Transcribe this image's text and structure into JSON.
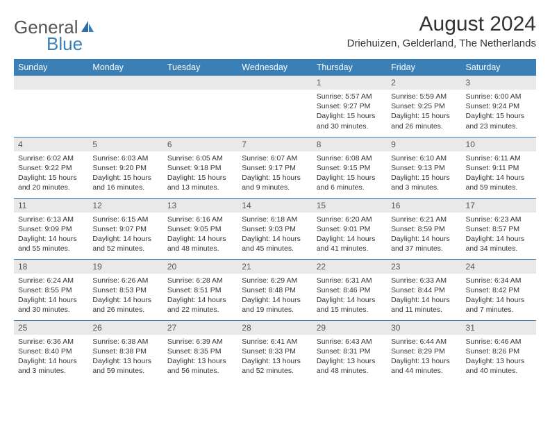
{
  "logo": {
    "text1": "General",
    "text2": "Blue"
  },
  "header": {
    "title": "August 2024",
    "location": "Driehuizen, Gelderland, The Netherlands"
  },
  "colors": {
    "header_bg": "#3a7fb5",
    "header_text": "#ffffff",
    "daynum_bg": "#e9e9e9",
    "row_border": "#3a7fb5",
    "body_text": "#333333",
    "page_bg": "#ffffff"
  },
  "typography": {
    "title_fontsize": 30,
    "location_fontsize": 15,
    "day_header_fontsize": 12.5,
    "daynum_fontsize": 12,
    "cell_fontsize": 10.5,
    "font_family": "Arial"
  },
  "weekdays": [
    "Sunday",
    "Monday",
    "Tuesday",
    "Wednesday",
    "Thursday",
    "Friday",
    "Saturday"
  ],
  "weeks": [
    [
      {
        "n": "",
        "sunrise": "",
        "sunset": "",
        "daylight": ""
      },
      {
        "n": "",
        "sunrise": "",
        "sunset": "",
        "daylight": ""
      },
      {
        "n": "",
        "sunrise": "",
        "sunset": "",
        "daylight": ""
      },
      {
        "n": "",
        "sunrise": "",
        "sunset": "",
        "daylight": ""
      },
      {
        "n": "1",
        "sunrise": "Sunrise: 5:57 AM",
        "sunset": "Sunset: 9:27 PM",
        "daylight": "Daylight: 15 hours and 30 minutes."
      },
      {
        "n": "2",
        "sunrise": "Sunrise: 5:59 AM",
        "sunset": "Sunset: 9:25 PM",
        "daylight": "Daylight: 15 hours and 26 minutes."
      },
      {
        "n": "3",
        "sunrise": "Sunrise: 6:00 AM",
        "sunset": "Sunset: 9:24 PM",
        "daylight": "Daylight: 15 hours and 23 minutes."
      }
    ],
    [
      {
        "n": "4",
        "sunrise": "Sunrise: 6:02 AM",
        "sunset": "Sunset: 9:22 PM",
        "daylight": "Daylight: 15 hours and 20 minutes."
      },
      {
        "n": "5",
        "sunrise": "Sunrise: 6:03 AM",
        "sunset": "Sunset: 9:20 PM",
        "daylight": "Daylight: 15 hours and 16 minutes."
      },
      {
        "n": "6",
        "sunrise": "Sunrise: 6:05 AM",
        "sunset": "Sunset: 9:18 PM",
        "daylight": "Daylight: 15 hours and 13 minutes."
      },
      {
        "n": "7",
        "sunrise": "Sunrise: 6:07 AM",
        "sunset": "Sunset: 9:17 PM",
        "daylight": "Daylight: 15 hours and 9 minutes."
      },
      {
        "n": "8",
        "sunrise": "Sunrise: 6:08 AM",
        "sunset": "Sunset: 9:15 PM",
        "daylight": "Daylight: 15 hours and 6 minutes."
      },
      {
        "n": "9",
        "sunrise": "Sunrise: 6:10 AM",
        "sunset": "Sunset: 9:13 PM",
        "daylight": "Daylight: 15 hours and 3 minutes."
      },
      {
        "n": "10",
        "sunrise": "Sunrise: 6:11 AM",
        "sunset": "Sunset: 9:11 PM",
        "daylight": "Daylight: 14 hours and 59 minutes."
      }
    ],
    [
      {
        "n": "11",
        "sunrise": "Sunrise: 6:13 AM",
        "sunset": "Sunset: 9:09 PM",
        "daylight": "Daylight: 14 hours and 55 minutes."
      },
      {
        "n": "12",
        "sunrise": "Sunrise: 6:15 AM",
        "sunset": "Sunset: 9:07 PM",
        "daylight": "Daylight: 14 hours and 52 minutes."
      },
      {
        "n": "13",
        "sunrise": "Sunrise: 6:16 AM",
        "sunset": "Sunset: 9:05 PM",
        "daylight": "Daylight: 14 hours and 48 minutes."
      },
      {
        "n": "14",
        "sunrise": "Sunrise: 6:18 AM",
        "sunset": "Sunset: 9:03 PM",
        "daylight": "Daylight: 14 hours and 45 minutes."
      },
      {
        "n": "15",
        "sunrise": "Sunrise: 6:20 AM",
        "sunset": "Sunset: 9:01 PM",
        "daylight": "Daylight: 14 hours and 41 minutes."
      },
      {
        "n": "16",
        "sunrise": "Sunrise: 6:21 AM",
        "sunset": "Sunset: 8:59 PM",
        "daylight": "Daylight: 14 hours and 37 minutes."
      },
      {
        "n": "17",
        "sunrise": "Sunrise: 6:23 AM",
        "sunset": "Sunset: 8:57 PM",
        "daylight": "Daylight: 14 hours and 34 minutes."
      }
    ],
    [
      {
        "n": "18",
        "sunrise": "Sunrise: 6:24 AM",
        "sunset": "Sunset: 8:55 PM",
        "daylight": "Daylight: 14 hours and 30 minutes."
      },
      {
        "n": "19",
        "sunrise": "Sunrise: 6:26 AM",
        "sunset": "Sunset: 8:53 PM",
        "daylight": "Daylight: 14 hours and 26 minutes."
      },
      {
        "n": "20",
        "sunrise": "Sunrise: 6:28 AM",
        "sunset": "Sunset: 8:51 PM",
        "daylight": "Daylight: 14 hours and 22 minutes."
      },
      {
        "n": "21",
        "sunrise": "Sunrise: 6:29 AM",
        "sunset": "Sunset: 8:48 PM",
        "daylight": "Daylight: 14 hours and 19 minutes."
      },
      {
        "n": "22",
        "sunrise": "Sunrise: 6:31 AM",
        "sunset": "Sunset: 8:46 PM",
        "daylight": "Daylight: 14 hours and 15 minutes."
      },
      {
        "n": "23",
        "sunrise": "Sunrise: 6:33 AM",
        "sunset": "Sunset: 8:44 PM",
        "daylight": "Daylight: 14 hours and 11 minutes."
      },
      {
        "n": "24",
        "sunrise": "Sunrise: 6:34 AM",
        "sunset": "Sunset: 8:42 PM",
        "daylight": "Daylight: 14 hours and 7 minutes."
      }
    ],
    [
      {
        "n": "25",
        "sunrise": "Sunrise: 6:36 AM",
        "sunset": "Sunset: 8:40 PM",
        "daylight": "Daylight: 14 hours and 3 minutes."
      },
      {
        "n": "26",
        "sunrise": "Sunrise: 6:38 AM",
        "sunset": "Sunset: 8:38 PM",
        "daylight": "Daylight: 13 hours and 59 minutes."
      },
      {
        "n": "27",
        "sunrise": "Sunrise: 6:39 AM",
        "sunset": "Sunset: 8:35 PM",
        "daylight": "Daylight: 13 hours and 56 minutes."
      },
      {
        "n": "28",
        "sunrise": "Sunrise: 6:41 AM",
        "sunset": "Sunset: 8:33 PM",
        "daylight": "Daylight: 13 hours and 52 minutes."
      },
      {
        "n": "29",
        "sunrise": "Sunrise: 6:43 AM",
        "sunset": "Sunset: 8:31 PM",
        "daylight": "Daylight: 13 hours and 48 minutes."
      },
      {
        "n": "30",
        "sunrise": "Sunrise: 6:44 AM",
        "sunset": "Sunset: 8:29 PM",
        "daylight": "Daylight: 13 hours and 44 minutes."
      },
      {
        "n": "31",
        "sunrise": "Sunrise: 6:46 AM",
        "sunset": "Sunset: 8:26 PM",
        "daylight": "Daylight: 13 hours and 40 minutes."
      }
    ]
  ]
}
